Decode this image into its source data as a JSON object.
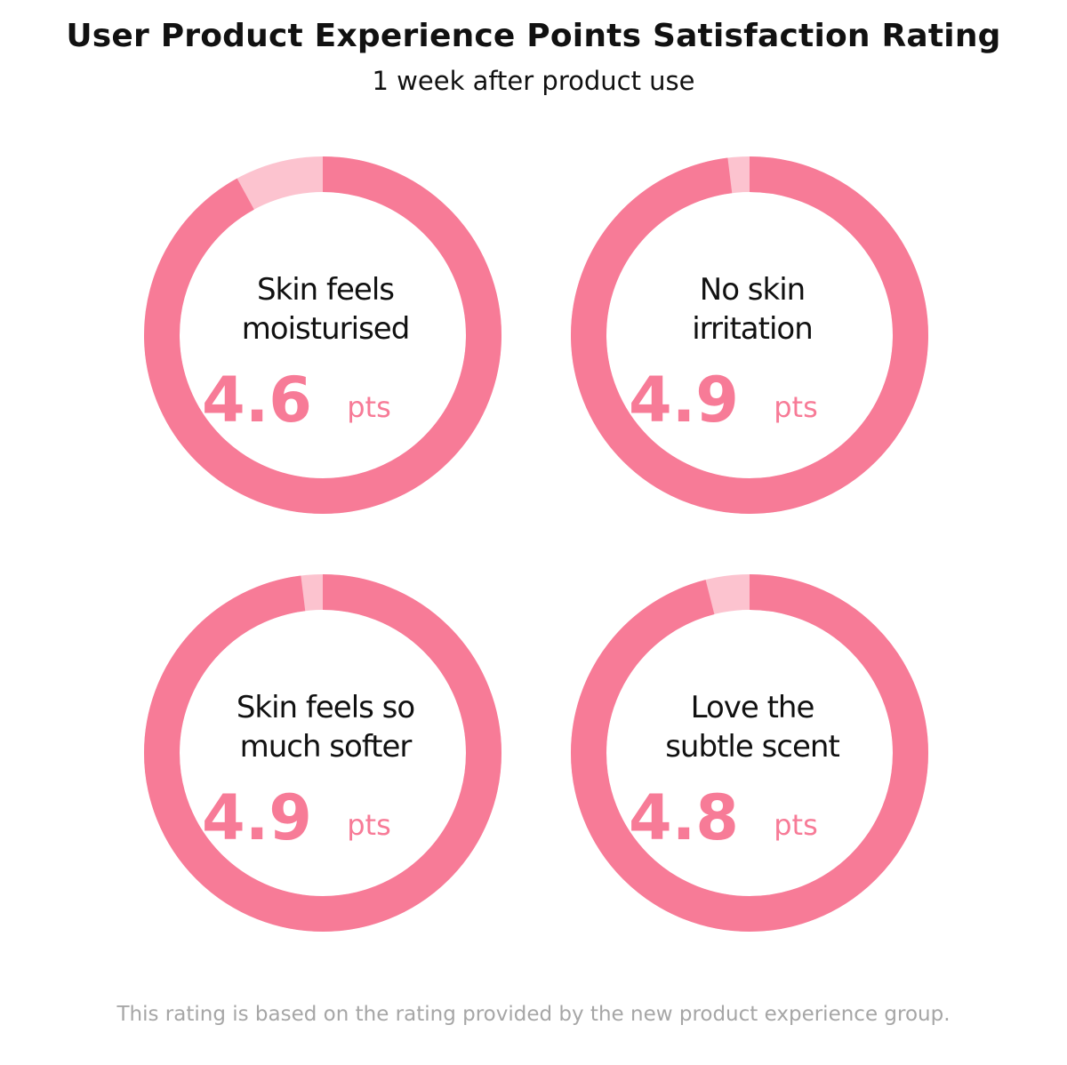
{
  "chart_data": {
    "type": "pie",
    "title": "User Product Experience Points Satisfaction Rating",
    "subtitle": "1 week after product use",
    "max": 5,
    "unit": "pts",
    "colors": {
      "filled": "#f77b97",
      "remainder": "#fcc3cf"
    },
    "items": [
      {
        "label_lines": [
          "Skin feels",
          "moisturised"
        ],
        "value": 4.6,
        "display": "4.6"
      },
      {
        "label_lines": [
          "No skin",
          "irritation"
        ],
        "value": 4.9,
        "display": "4.9"
      },
      {
        "label_lines": [
          "Skin feels so",
          "much softer"
        ],
        "value": 4.9,
        "display": "4.9"
      },
      {
        "label_lines": [
          "Love the",
          "subtle scent"
        ],
        "value": 4.8,
        "display": "4.8"
      }
    ],
    "footnote": "This rating is based on the rating provided by the new product experience group."
  }
}
